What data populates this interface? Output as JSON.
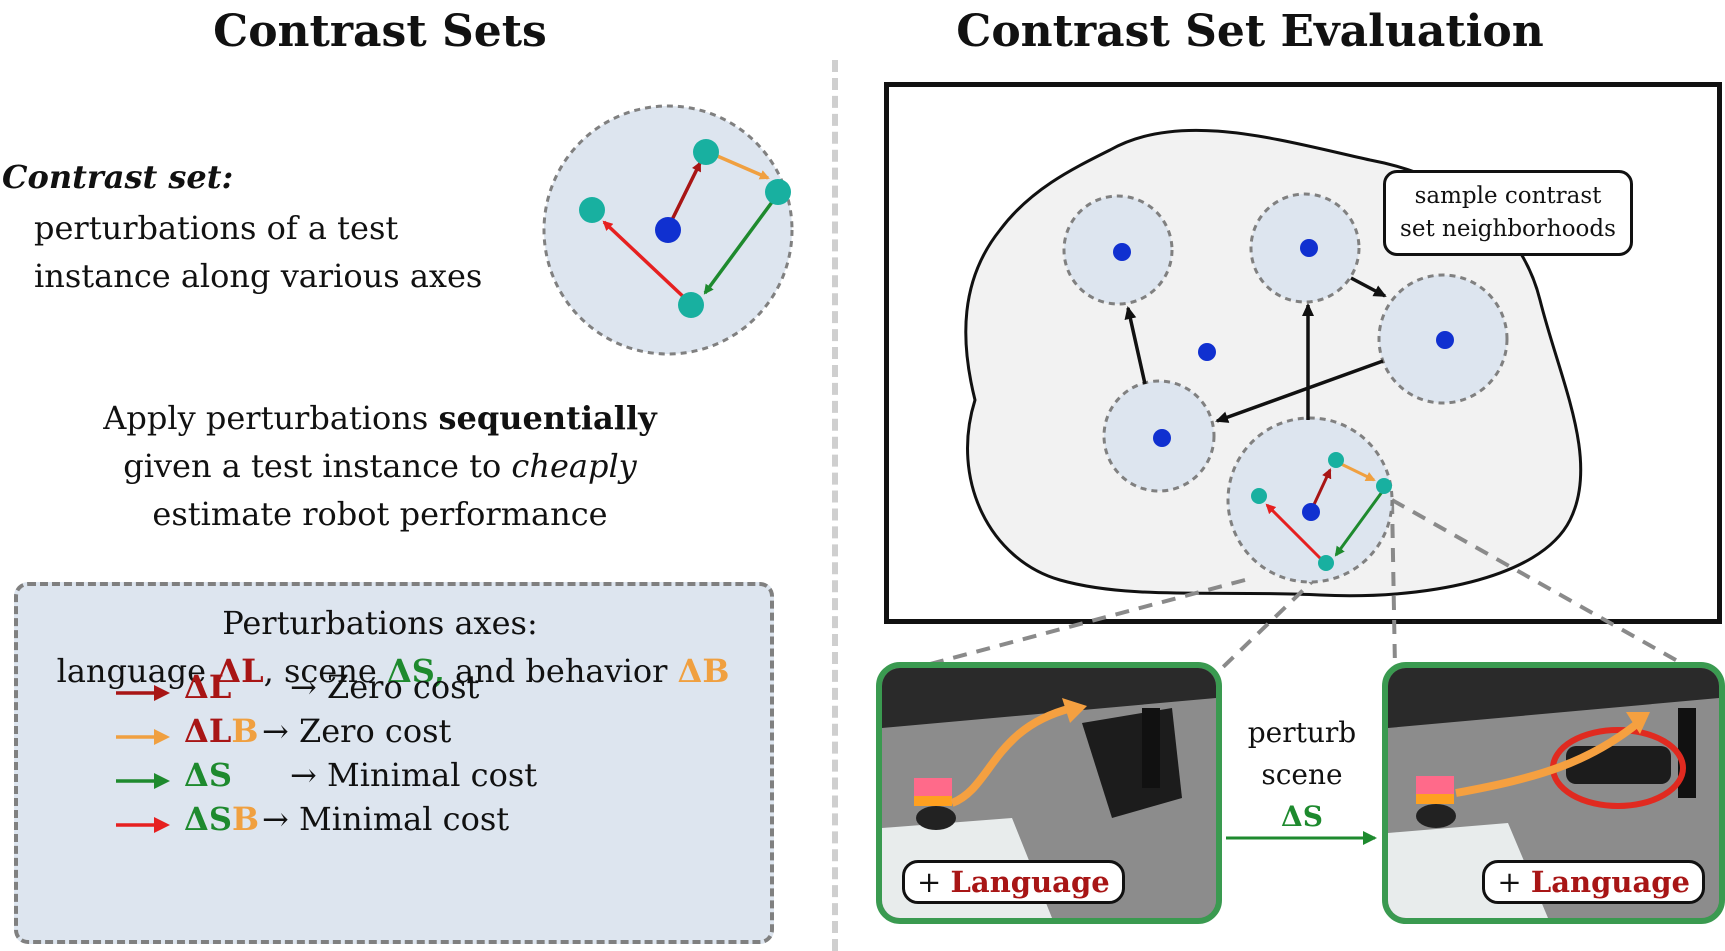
{
  "left_panel": {
    "title": "Contrast Sets",
    "contrast_set_heading": "Contrast set:",
    "contrast_set_desc_line1": "perturbations of a test",
    "contrast_set_desc_line2": "instance along various axes",
    "apply_line1_pre": "Apply perturbations ",
    "apply_line1_bold": "sequentially",
    "apply_line2_pre": "given a test instance to ",
    "apply_line2_italic": "cheaply",
    "apply_line3": "estimate robot performance",
    "axes_box": {
      "title": "Perturbations axes:",
      "line_pre": "language ",
      "delta_L": "ΔL",
      "mid1": ", scene ",
      "delta_S": "ΔS",
      "comma2": ",",
      "mid2": " and behavior ",
      "delta_B": "ΔB",
      "legend": [
        {
          "sym_parts": [
            {
              "text": "ΔL",
              "cls": "dl"
            }
          ],
          "arrow_color": "#a81515",
          "cost": "→ Zero cost"
        },
        {
          "sym_parts": [
            {
              "text": "ΔL",
              "cls": "dl"
            },
            {
              "text": "B",
              "cls": "db"
            }
          ],
          "arrow_color": "#f0a040",
          "cost": "→ Zero cost"
        },
        {
          "sym_parts": [
            {
              "text": "ΔS",
              "cls": "ds"
            }
          ],
          "arrow_color": "#1e8a2e",
          "cost": "→ Minimal cost"
        },
        {
          "sym_parts": [
            {
              "text": "ΔS",
              "cls": "ds"
            },
            {
              "text": "B",
              "cls": "db"
            }
          ],
          "arrow_color": "#e62020",
          "cost": "→ Minimal cost"
        }
      ]
    }
  },
  "right_panel": {
    "title": "Contrast Set Evaluation",
    "tooltip_line1": "sample contrast",
    "tooltip_line2": "set neighborhoods",
    "photo_left_label_plus": "+",
    "photo_left_label_word": "Language",
    "photo_right_label_plus": "+",
    "photo_right_label_word": "Language",
    "perturb_line1": "perturb",
    "perturb_line2": "scene",
    "perturb_delta": "ΔS"
  },
  "colors": {
    "circle_fill": "#dde5ef",
    "center_dot": "#1030d0",
    "teal_dot": "#18b0a0",
    "delta_L": "#a81515",
    "delta_S": "#1e8a2e",
    "delta_B": "#f0a040",
    "red_arrow": "#e62020",
    "photo_border": "#3a9a50"
  }
}
